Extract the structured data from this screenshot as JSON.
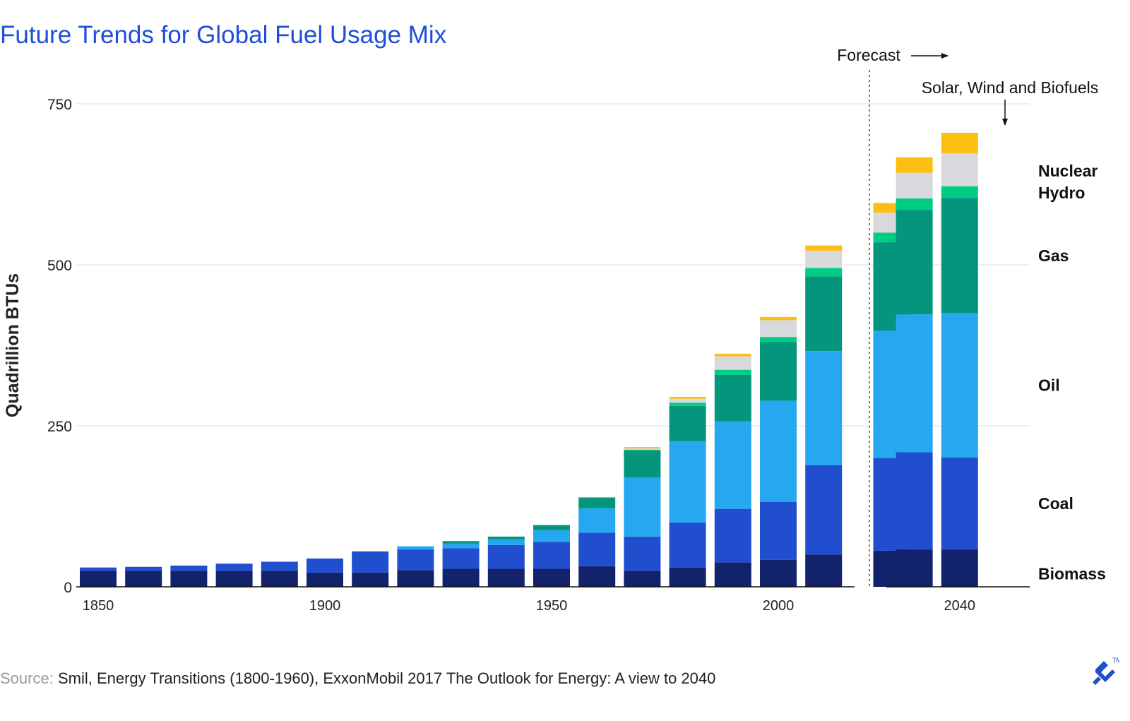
{
  "title": "Future Trends for Global Fuel Usage Mix",
  "source": {
    "label": "Source:",
    "text": "Smil, Energy Transitions (1800-1960), ExxonMobil 2017 The Outlook for Energy: A view to 2040"
  },
  "annotations": {
    "forecast": "Forecast",
    "top_callout": "Solar, Wind and Biofuels",
    "trademark": "TM"
  },
  "colors": {
    "biomass": "#12226b",
    "coal": "#204ecf",
    "oil": "#25a8ef",
    "gas": "#03967c",
    "hydro": "#00cc83",
    "nuclear": "#d8d9dc",
    "solar_wind_biofuels": "#fcc014",
    "title": "#1f4fd6",
    "grid": "#dcdcdc"
  },
  "chart_data": {
    "type": "bar",
    "stacked": true,
    "title": "Future Trends for Global Fuel Usage Mix",
    "xlabel": "",
    "ylabel": "Quadrillion BTUs",
    "ylim": [
      0,
      750
    ],
    "yticks": [
      0,
      250,
      500,
      750
    ],
    "xticks": [
      "1850",
      "1900",
      "1950",
      "2000",
      "2040"
    ],
    "grid": true,
    "forecast_starts_after": 2010,
    "categories": [
      1850,
      1860,
      1870,
      1880,
      1890,
      1900,
      1910,
      1920,
      1930,
      1940,
      1950,
      1960,
      1970,
      1980,
      1990,
      2000,
      2010,
      2025,
      2030,
      2040
    ],
    "series": [
      {
        "name": "Biomass",
        "color_key": "biomass",
        "values": [
          25,
          25,
          25,
          25,
          25,
          22,
          22,
          26,
          28,
          28,
          28,
          32,
          25,
          30,
          38,
          42,
          50,
          56,
          58,
          58
        ]
      },
      {
        "name": "Coal",
        "color_key": "coal",
        "values": [
          5,
          6,
          8,
          11,
          14,
          22,
          33,
          32,
          32,
          37,
          42,
          52,
          53,
          70,
          83,
          90,
          139,
          144,
          151,
          143
        ]
      },
      {
        "name": "Oil",
        "color_key": "oil",
        "values": [
          0,
          0,
          0,
          0,
          0,
          0,
          0,
          5,
          7,
          9,
          18,
          38,
          92,
          126,
          136,
          157,
          177,
          198,
          214,
          224
        ]
      },
      {
        "name": "Gas",
        "color_key": "gas",
        "values": [
          0,
          0,
          0,
          0,
          0,
          0,
          0,
          0,
          4,
          4,
          8,
          16,
          42,
          55,
          72,
          91,
          116,
          137,
          162,
          179
        ]
      },
      {
        "name": "Hydro",
        "color_key": "hydro",
        "values": [
          0,
          0,
          0,
          0,
          0,
          0,
          0,
          0,
          0,
          0,
          0,
          1,
          1,
          5,
          8,
          8,
          13,
          15,
          18,
          18
        ]
      },
      {
        "name": "Nuclear",
        "color_key": "nuclear",
        "values": [
          0,
          0,
          0,
          0,
          0,
          0,
          0,
          0,
          0,
          0,
          0,
          0,
          2,
          6,
          21,
          26,
          27,
          31,
          40,
          51
        ]
      },
      {
        "name": "Solar, Wind and Biofuels",
        "color_key": "solar_wind_biofuels",
        "values": [
          0,
          0,
          0,
          0,
          0,
          0,
          0,
          0,
          0,
          0,
          0,
          0,
          2,
          3,
          4,
          5,
          8,
          15,
          24,
          32
        ]
      }
    ],
    "legend": {
      "placement": "right",
      "labels": [
        "Nuclear",
        "Hydro",
        "Gas",
        "Oil",
        "Coal",
        "Biomass"
      ]
    }
  }
}
